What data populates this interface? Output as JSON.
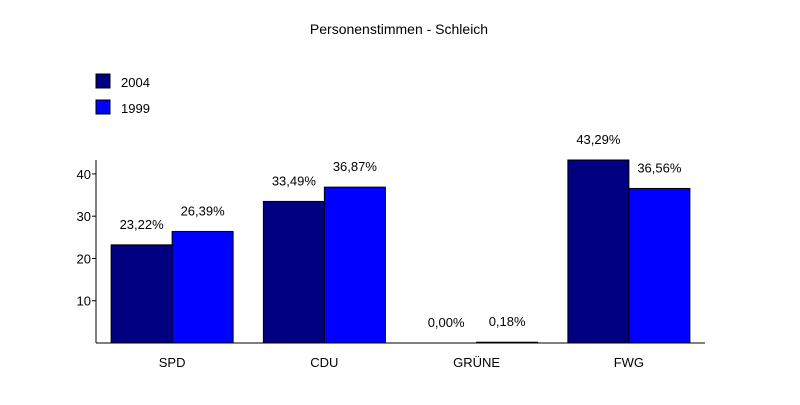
{
  "chart_data": {
    "type": "bar",
    "title": "Personenstimmen - Schleich",
    "xlabel": "",
    "ylabel": "",
    "categories": [
      "SPD",
      "CDU",
      "GRÜNE",
      "FWG"
    ],
    "series": [
      {
        "name": "2004",
        "color": "#000080",
        "values": [
          23.22,
          33.49,
          0.0,
          43.29
        ],
        "labels": [
          "23,22%",
          "33,49%",
          "0,00%",
          "43,29%"
        ]
      },
      {
        "name": "1999",
        "color": "#0000ff",
        "values": [
          26.39,
          36.87,
          0.18,
          36.56
        ],
        "labels": [
          "26,39%",
          "36,87%",
          "0,18%",
          "36,56%"
        ]
      }
    ],
    "ylim": [
      0,
      43.29
    ],
    "yticks": [
      10,
      20,
      30,
      40
    ],
    "grid": false,
    "legend_position": "top-left"
  }
}
